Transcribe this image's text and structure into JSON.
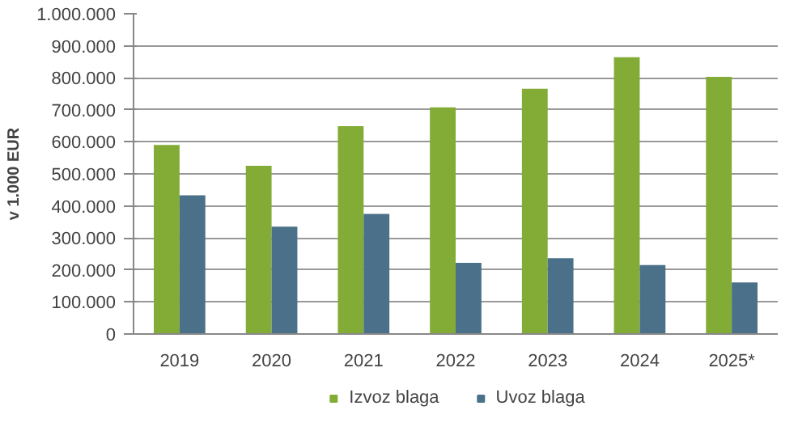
{
  "chart_data": {
    "type": "bar",
    "ylabel": "v 1.000 EUR",
    "categories": [
      "2019",
      "2020",
      "2021",
      "2022",
      "2023",
      "2024",
      "2025*"
    ],
    "series": [
      {
        "name": "Izvoz blaga",
        "color": "#82ac36",
        "values": [
          590000,
          525000,
          649000,
          708000,
          766000,
          864000,
          803000
        ]
      },
      {
        "name": "Uvoz blaga",
        "color": "#4a7189",
        "values": [
          433000,
          335000,
          375000,
          222000,
          237000,
          215000,
          161000
        ]
      }
    ],
    "ylim": [
      0,
      1000000
    ],
    "yticks": [
      0,
      {
        "value": 100000,
        "label": "100.000"
      },
      {
        "value": 200000,
        "label": "200.000"
      },
      {
        "value": 300000,
        "label": "300.000"
      },
      {
        "value": 400000,
        "label": "400.000"
      },
      {
        "value": 500000,
        "label": "500.000"
      },
      {
        "value": 600000,
        "label": "600.000"
      },
      {
        "value": 700000,
        "label": "700.000"
      },
      {
        "value": 800000,
        "label": "800.000"
      },
      {
        "value": 900000,
        "label": "900.000"
      },
      {
        "value": 1000000,
        "label": "1.000.000"
      }
    ],
    "grid": "y",
    "legend": "bottom"
  }
}
